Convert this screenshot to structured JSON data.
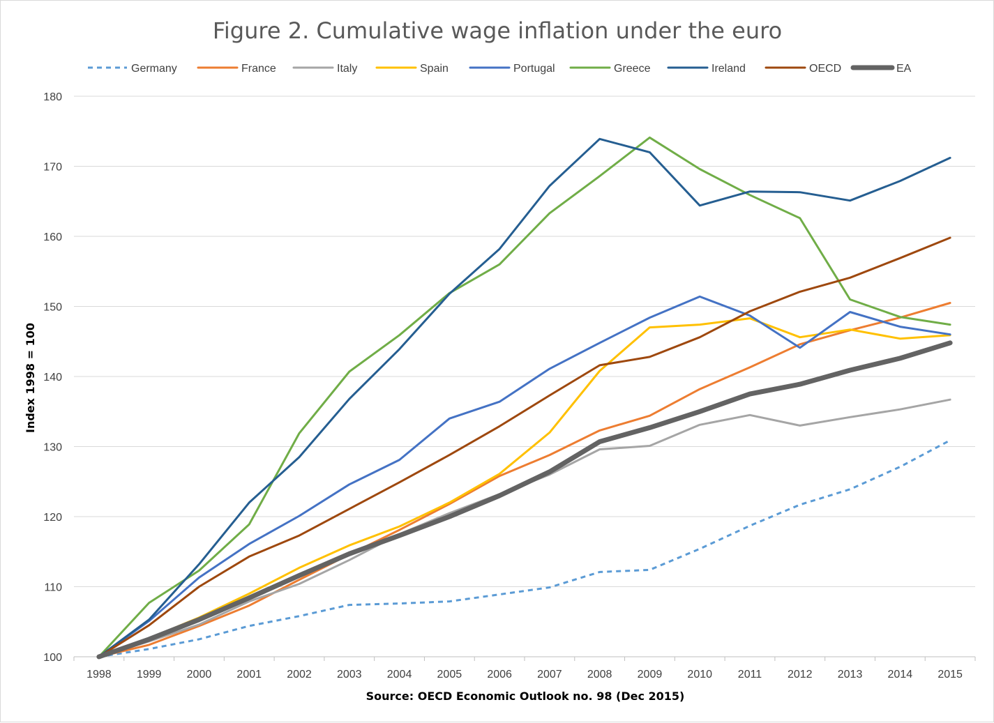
{
  "chart_data": {
    "type": "line",
    "title": "Figure 2. Cumulative wage inflation under the euro",
    "xlabel": "Source: OECD Economic Outlook no. 98 (Dec 2015)",
    "ylabel": "Index 1998 = 100",
    "ylim": [
      100,
      180
    ],
    "yticks": [
      100,
      110,
      120,
      130,
      140,
      150,
      160,
      170,
      180
    ],
    "grid": true,
    "legend_position": "top",
    "categories": [
      "1998",
      "1999",
      "2000",
      "2001",
      "2002",
      "2003",
      "2004",
      "2005",
      "2006",
      "2007",
      "2008",
      "2009",
      "2010",
      "2011",
      "2012",
      "2013",
      "2014",
      "2015"
    ],
    "series": [
      {
        "name": "Germany",
        "color": "#5b9bd5",
        "dashed": true,
        "width": 3,
        "values": [
          100.0,
          101.1,
          102.5,
          104.4,
          105.8,
          107.4,
          107.6,
          107.9,
          108.9,
          109.9,
          112.1,
          112.4,
          115.4,
          118.7,
          121.7,
          123.9,
          127.1,
          130.9
        ]
      },
      {
        "name": "France",
        "color": "#ed7d31",
        "dashed": false,
        "width": 3,
        "values": [
          100.0,
          101.7,
          104.4,
          107.3,
          111.0,
          114.6,
          118.1,
          121.8,
          125.8,
          128.8,
          132.3,
          134.4,
          138.2,
          141.3,
          144.6,
          146.6,
          148.4,
          150.5
        ]
      },
      {
        "name": "Italy",
        "color": "#a5a5a5",
        "dashed": false,
        "width": 3,
        "values": [
          100.0,
          102.2,
          104.6,
          107.9,
          110.4,
          113.8,
          117.5,
          120.5,
          123.2,
          126.0,
          129.6,
          130.1,
          133.1,
          134.5,
          133.0,
          134.2,
          135.3,
          136.7
        ]
      },
      {
        "name": "Spain",
        "color": "#ffc000",
        "dashed": false,
        "width": 3,
        "values": [
          100.0,
          102.6,
          105.6,
          109.0,
          112.7,
          115.9,
          118.6,
          122.0,
          126.1,
          132.0,
          140.8,
          147.0,
          147.4,
          148.3,
          145.6,
          146.7,
          145.4,
          145.9
        ]
      },
      {
        "name": "Portugal",
        "color": "#4472c4",
        "dashed": false,
        "width": 3,
        "values": [
          100.0,
          105.1,
          111.3,
          116.1,
          120.1,
          124.6,
          128.1,
          134.0,
          136.4,
          141.1,
          144.8,
          148.4,
          151.4,
          148.7,
          144.1,
          149.2,
          147.1,
          146.0
        ]
      },
      {
        "name": "Greece",
        "color": "#70ad47",
        "dashed": false,
        "width": 3,
        "values": [
          100.0,
          107.7,
          112.3,
          118.9,
          131.9,
          140.7,
          145.9,
          151.9,
          156.0,
          163.3,
          168.6,
          174.1,
          169.6,
          165.9,
          162.6,
          151.0,
          148.5,
          147.4
        ]
      },
      {
        "name": "Ireland",
        "color": "#255e91",
        "dashed": false,
        "width": 3,
        "values": [
          100.0,
          105.3,
          113.2,
          122.0,
          128.5,
          136.8,
          143.9,
          151.8,
          158.2,
          167.2,
          173.9,
          172.0,
          164.4,
          166.4,
          166.3,
          165.1,
          167.9,
          171.2
        ]
      },
      {
        "name": "OECD",
        "color": "#9e480e",
        "dashed": false,
        "width": 3,
        "values": [
          100.0,
          104.5,
          110.0,
          114.3,
          117.3,
          121.1,
          124.9,
          128.8,
          132.9,
          137.3,
          141.6,
          142.8,
          145.6,
          149.3,
          152.1,
          154.1,
          156.9,
          159.8
        ]
      },
      {
        "name": "EA",
        "color": "#636363",
        "dashed": false,
        "width": 7,
        "values": [
          100.0,
          102.5,
          105.3,
          108.4,
          111.6,
          114.7,
          117.3,
          120.0,
          123.0,
          126.4,
          130.7,
          132.7,
          135.0,
          137.5,
          138.9,
          140.9,
          142.6,
          144.8
        ]
      }
    ]
  }
}
